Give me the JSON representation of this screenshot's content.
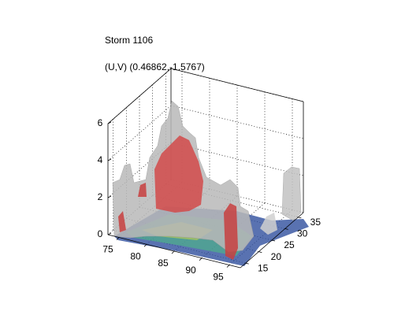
{
  "chart_data": {
    "type": "isosurface3d",
    "title": "Storm 1106",
    "subtitle": "(U,V) (0.46862,-1.5767)",
    "xlim": [
      73,
      97
    ],
    "xticks": [
      75,
      80,
      85,
      90,
      95
    ],
    "ylim": [
      13,
      37
    ],
    "yticks": [
      15,
      20,
      25,
      30,
      35
    ],
    "zlim": [
      0,
      6
    ],
    "zticks": [
      0,
      2,
      4,
      6
    ],
    "grid": true
  }
}
